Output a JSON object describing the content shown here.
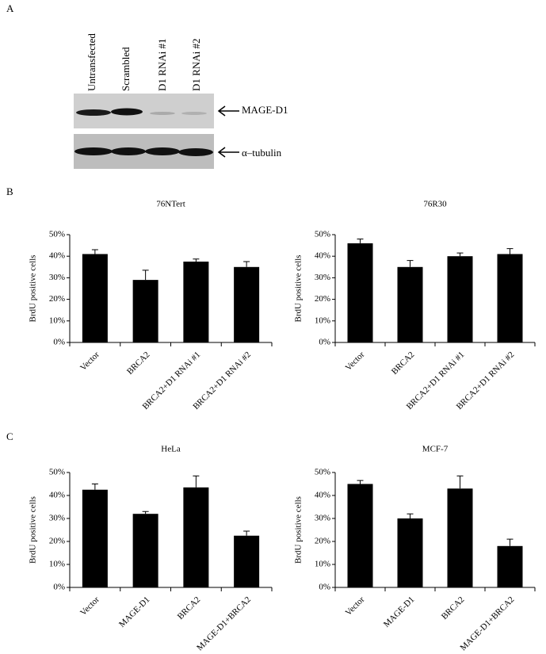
{
  "panel_labels": [
    "A",
    "B",
    "C"
  ],
  "blot": {
    "lanes": [
      "Untransfected",
      "Scrambled",
      "D1 RNAi #1",
      "D1 RNAi #2"
    ],
    "bands": [
      "MAGE-D1",
      "α–tubulin"
    ]
  },
  "chart_data": [
    {
      "type": "bar",
      "title": "76NTert",
      "y_label": "BrdU positive cells",
      "categories": [
        "Vector",
        "BRCA2",
        "BRCA2+D1 RNAi #1",
        "BRCA2+D1 RNAi #2"
      ],
      "values": [
        41,
        29,
        37.5,
        35
      ],
      "errors": [
        2,
        4.5,
        1.2,
        2.5
      ],
      "color": "#000000",
      "ylim": [
        0,
        50
      ],
      "yticks": [
        {
          "value": 0,
          "label": "0%"
        },
        {
          "value": 10,
          "label": "10%"
        },
        {
          "value": 20,
          "label": "20%"
        },
        {
          "value": 30,
          "label": "30%"
        },
        {
          "value": 40,
          "label": "40%"
        },
        {
          "value": 50,
          "label": "50%"
        }
      ]
    },
    {
      "type": "bar",
      "title": "76R30",
      "y_label": "BrdU positive cells",
      "categories": [
        "Vector",
        "BRCA2",
        "BRCA2+D1 RNAi #1",
        "BRCA2+D1 RNAi #2"
      ],
      "values": [
        46,
        35,
        40,
        41
      ],
      "errors": [
        2,
        3,
        1.5,
        2.5
      ],
      "color": "#000000",
      "ylim": [
        0,
        50
      ],
      "yticks": [
        {
          "value": 0,
          "label": "0%"
        },
        {
          "value": 10,
          "label": "10%"
        },
        {
          "value": 20,
          "label": "20%"
        },
        {
          "value": 30,
          "label": "30%"
        },
        {
          "value": 40,
          "label": "40%"
        },
        {
          "value": 50,
          "label": "50%"
        }
      ]
    },
    {
      "type": "bar",
      "title": "HeLa",
      "y_label": "BrdU positive cells",
      "categories": [
        "Vector",
        "MAGE-D1",
        "BRCA2",
        "MAGE-D1+BRCA2"
      ],
      "values": [
        42.5,
        32,
        43.5,
        22.5
      ],
      "errors": [
        2.5,
        1,
        5,
        2
      ],
      "color": "#000000",
      "ylim": [
        0,
        50
      ],
      "yticks": [
        {
          "value": 0,
          "label": "0%"
        },
        {
          "value": 10,
          "label": "10%"
        },
        {
          "value": 20,
          "label": "20%"
        },
        {
          "value": 30,
          "label": "30%"
        },
        {
          "value": 40,
          "label": "40%"
        },
        {
          "value": 50,
          "label": "50%"
        }
      ]
    },
    {
      "type": "bar",
      "title": "MCF-7",
      "y_label": "BrdU positive cells",
      "categories": [
        "Vector",
        "MAGE-D1",
        "BRCA2",
        "MAGE-D1+BRCA2"
      ],
      "values": [
        45,
        30,
        43,
        18
      ],
      "errors": [
        1.5,
        2,
        5.5,
        3
      ],
      "color": "#000000",
      "ylim": [
        0,
        50
      ],
      "yticks": [
        {
          "value": 0,
          "label": "0%"
        },
        {
          "value": 10,
          "label": "10%"
        },
        {
          "value": 20,
          "label": "20%"
        },
        {
          "value": 30,
          "label": "30%"
        },
        {
          "value": 40,
          "label": "40%"
        },
        {
          "value": 50,
          "label": "50%"
        }
      ]
    }
  ]
}
